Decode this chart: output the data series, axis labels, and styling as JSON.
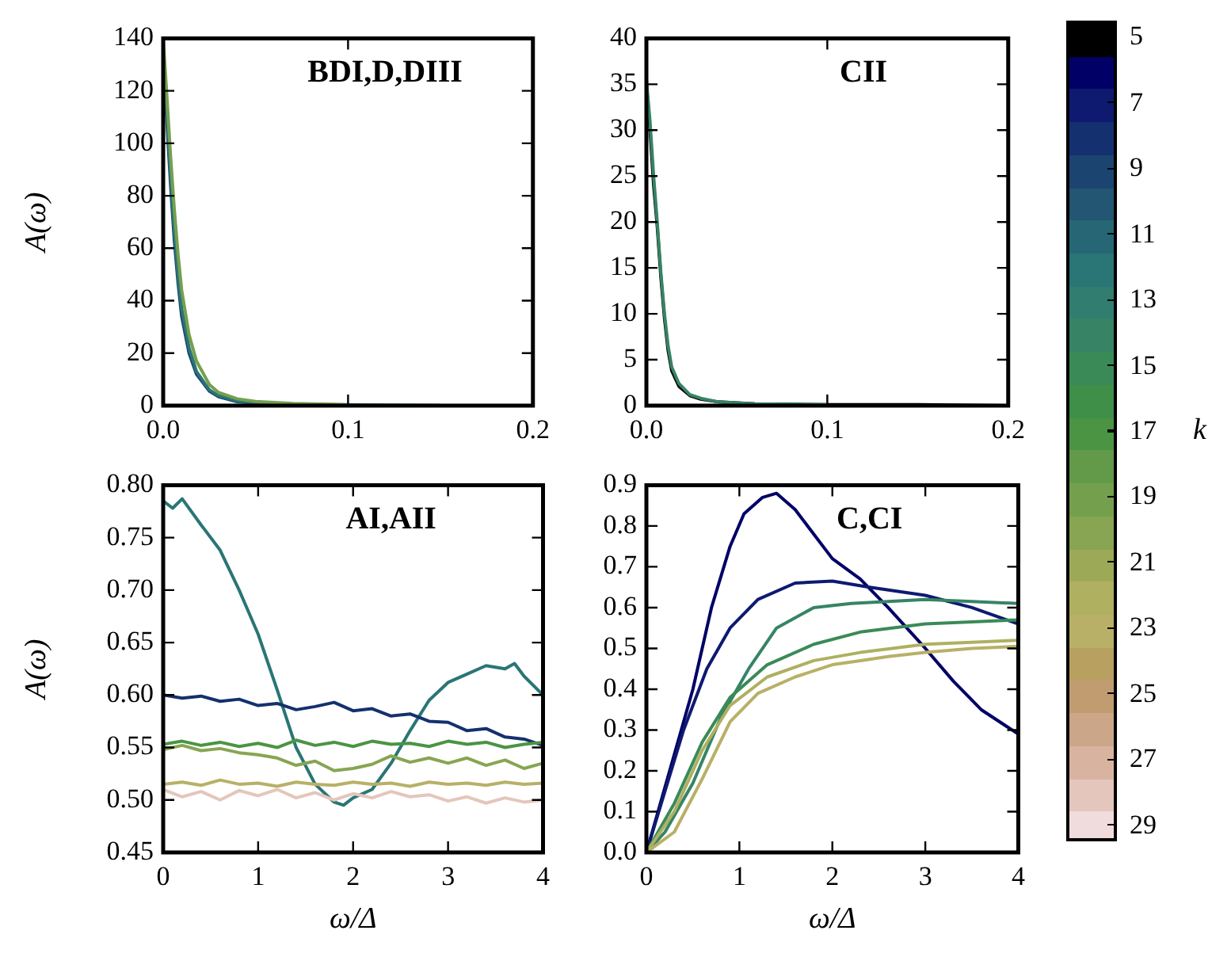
{
  "chart_data": [
    {
      "type": "line",
      "title": "BDI,D,DIII",
      "ylabel": "A(ω)",
      "xlim": [
        0,
        0.2
      ],
      "xticks": [
        {
          "value": 0,
          "label": "0.0"
        },
        0.1,
        0.2
      ],
      "ylim": [
        0,
        140
      ],
      "yticks": [
        0,
        20,
        40,
        60,
        80,
        100,
        120,
        140
      ],
      "series": [
        {
          "color": "#74a04e",
          "x": [
            0,
            0.002,
            0.004,
            0.006,
            0.008,
            0.01,
            0.014,
            0.018,
            0.025,
            0.03,
            0.04,
            0.05,
            0.07,
            0.1
          ],
          "values": [
            140,
            118,
            95,
            75,
            58,
            44,
            27,
            17,
            8,
            5,
            2.6,
            1.6,
            0.8,
            0.4
          ]
        },
        {
          "color": "#2a7576",
          "x": [
            0,
            0.002,
            0.004,
            0.006,
            0.008,
            0.01,
            0.014,
            0.018,
            0.025,
            0.03,
            0.04,
            0.05,
            0.07,
            0.1,
            0.15
          ],
          "values": [
            138,
            112,
            88,
            67,
            50,
            37,
            22,
            13,
            6,
            3.8,
            1.8,
            1,
            0.5,
            0.3,
            0.1
          ]
        },
        {
          "color": "#1c4470",
          "x": [
            0,
            0.002,
            0.004,
            0.006,
            0.008,
            0.01,
            0.014,
            0.018,
            0.025,
            0.03,
            0.04,
            0.05,
            0.07
          ],
          "values": [
            136,
            108,
            84,
            63,
            47,
            34,
            20,
            12,
            5.5,
            3.4,
            1.5,
            0.8,
            0.4
          ]
        }
      ]
    },
    {
      "type": "line",
      "title": "CII",
      "xlim": [
        0,
        0.2
      ],
      "xticks": [
        {
          "value": 0,
          "label": "0.0"
        },
        0.1,
        0.2
      ],
      "ylim": [
        0,
        40
      ],
      "yticks": [
        0,
        5,
        10,
        15,
        20,
        25,
        30,
        35,
        40
      ],
      "series": [
        {
          "color": "#368465",
          "x": [
            0,
            0.002,
            0.004,
            0.006,
            0.008,
            0.01,
            0.012,
            0.014,
            0.018,
            0.024,
            0.03,
            0.04,
            0.06,
            0.1
          ],
          "values": [
            35.5,
            31,
            25,
            20,
            14.5,
            10,
            6.5,
            4.2,
            2.4,
            1.2,
            0.8,
            0.4,
            0.2,
            0.1
          ]
        },
        {
          "color": "#000000",
          "x": [
            0,
            0.002,
            0.004,
            0.006,
            0.008,
            0.01,
            0.012,
            0.014,
            0.018,
            0.024,
            0.03,
            0.04,
            0.06,
            0.1,
            0.15,
            0.2
          ],
          "values": [
            35,
            30,
            24,
            19.5,
            14,
            9.5,
            6,
            3.8,
            2.1,
            1.1,
            0.7,
            0.4,
            0.2,
            0.1,
            0.1,
            0
          ]
        }
      ]
    },
    {
      "type": "line",
      "title": "AI,AII",
      "xlabel": "ω/Δ",
      "ylabel": "A(ω)",
      "xlim": [
        0,
        4
      ],
      "xticks": [
        0,
        1,
        2,
        3,
        4
      ],
      "ylim": [
        0.45,
        0.8
      ],
      "yticks": [
        {
          "value": 0.45,
          "label": "0.45"
        },
        {
          "value": 0.5,
          "label": "0.50"
        },
        {
          "value": 0.55,
          "label": "0.55"
        },
        {
          "value": 0.6,
          "label": "0.60"
        },
        {
          "value": 0.65,
          "label": "0.65"
        },
        {
          "value": 0.7,
          "label": "0.70"
        },
        {
          "value": 0.75,
          "label": "0.75"
        },
        {
          "value": 0.8,
          "label": "0.80"
        }
      ],
      "series": [
        {
          "color": "#e4c6bc",
          "x": [
            0,
            0.2,
            0.4,
            0.6,
            0.8,
            1,
            1.2,
            1.4,
            1.6,
            1.8,
            2,
            2.2,
            2.4,
            2.6,
            2.8,
            3,
            3.2,
            3.4,
            3.6,
            3.8,
            4
          ],
          "values": [
            0.51,
            0.503,
            0.508,
            0.5,
            0.509,
            0.504,
            0.51,
            0.502,
            0.507,
            0.5,
            0.506,
            0.502,
            0.508,
            0.503,
            0.505,
            0.499,
            0.503,
            0.497,
            0.502,
            0.498,
            0.5
          ]
        },
        {
          "color": "#b8b066",
          "x": [
            0,
            0.2,
            0.4,
            0.6,
            0.8,
            1,
            1.2,
            1.4,
            1.6,
            1.8,
            2,
            2.2,
            2.4,
            2.6,
            2.8,
            3,
            3.2,
            3.4,
            3.6,
            3.8,
            4
          ],
          "values": [
            0.515,
            0.517,
            0.514,
            0.519,
            0.515,
            0.516,
            0.513,
            0.517,
            0.515,
            0.514,
            0.517,
            0.515,
            0.516,
            0.513,
            0.517,
            0.515,
            0.516,
            0.514,
            0.517,
            0.515,
            0.516
          ]
        },
        {
          "color": "#87a552",
          "x": [
            0,
            0.2,
            0.4,
            0.6,
            0.8,
            1,
            1.2,
            1.4,
            1.6,
            1.8,
            2,
            2.2,
            2.4,
            2.6,
            2.8,
            3,
            3.2,
            3.4,
            3.6,
            3.8,
            4
          ],
          "values": [
            0.548,
            0.552,
            0.547,
            0.549,
            0.545,
            0.543,
            0.54,
            0.533,
            0.537,
            0.528,
            0.53,
            0.534,
            0.542,
            0.536,
            0.54,
            0.535,
            0.54,
            0.533,
            0.538,
            0.53,
            0.535
          ]
        },
        {
          "color": "#4a9444",
          "x": [
            0,
            0.2,
            0.4,
            0.6,
            0.8,
            1,
            1.2,
            1.4,
            1.6,
            1.8,
            2,
            2.2,
            2.4,
            2.6,
            2.8,
            3,
            3.2,
            3.4,
            3.6,
            3.8,
            4
          ],
          "values": [
            0.553,
            0.556,
            0.552,
            0.555,
            0.551,
            0.554,
            0.55,
            0.557,
            0.552,
            0.555,
            0.551,
            0.556,
            0.553,
            0.554,
            0.551,
            0.556,
            0.553,
            0.555,
            0.55,
            0.553,
            0.555
          ]
        },
        {
          "color": "#14306e",
          "x": [
            0,
            0.2,
            0.4,
            0.6,
            0.8,
            1,
            1.2,
            1.4,
            1.6,
            1.8,
            2,
            2.2,
            2.4,
            2.6,
            2.8,
            3,
            3.2,
            3.4,
            3.6,
            3.8,
            4
          ],
          "values": [
            0.6,
            0.597,
            0.599,
            0.594,
            0.596,
            0.59,
            0.592,
            0.586,
            0.589,
            0.593,
            0.585,
            0.587,
            0.58,
            0.582,
            0.575,
            0.574,
            0.566,
            0.568,
            0.56,
            0.558,
            0.552
          ]
        },
        {
          "color": "#2a7576",
          "x": [
            0,
            0.1,
            0.2,
            0.4,
            0.6,
            0.8,
            1,
            1.2,
            1.4,
            1.6,
            1.8,
            1.9,
            2,
            2.2,
            2.4,
            2.6,
            2.8,
            3,
            3.2,
            3.4,
            3.6,
            3.7,
            3.8,
            4
          ],
          "values": [
            0.785,
            0.778,
            0.787,
            0.762,
            0.738,
            0.7,
            0.658,
            0.605,
            0.55,
            0.515,
            0.498,
            0.495,
            0.502,
            0.51,
            0.535,
            0.566,
            0.595,
            0.612,
            0.62,
            0.628,
            0.625,
            0.63,
            0.618,
            0.6
          ]
        }
      ]
    },
    {
      "type": "line",
      "title": "C,CI",
      "xlabel": "ω/Δ",
      "xlim": [
        0,
        4
      ],
      "xticks": [
        0,
        1,
        2,
        3,
        4
      ],
      "ylim": [
        0,
        0.9
      ],
      "yticks": [
        {
          "value": 0,
          "label": "0.0"
        },
        0.1,
        0.2,
        0.3,
        0.4,
        0.5,
        0.6,
        0.7,
        0.8,
        0.9
      ],
      "clabel": "k",
      "clim": [
        4.5,
        29.5
      ],
      "cticks": [
        5,
        7,
        9,
        11,
        13,
        15,
        17,
        19,
        21,
        23,
        25,
        27,
        29
      ],
      "series": [
        {
          "color": "#b8b066",
          "x": [
            0,
            0.3,
            0.6,
            0.9,
            1.2,
            1.6,
            2,
            2.3,
            2.6,
            3,
            3.5,
            4
          ],
          "values": [
            0,
            0.05,
            0.18,
            0.32,
            0.39,
            0.43,
            0.46,
            0.47,
            0.48,
            0.49,
            0.5,
            0.505
          ]
        },
        {
          "color": "#afb060",
          "x": [
            0,
            0.3,
            0.6,
            0.9,
            1.3,
            1.8,
            2.3,
            3,
            3.5,
            4
          ],
          "values": [
            0,
            0.1,
            0.25,
            0.36,
            0.43,
            0.47,
            0.49,
            0.51,
            0.515,
            0.52
          ]
        },
        {
          "color": "#3a8a58",
          "x": [
            0,
            0.3,
            0.6,
            0.9,
            1.3,
            1.8,
            2.3,
            3,
            3.5,
            4
          ],
          "values": [
            0,
            0.12,
            0.27,
            0.38,
            0.46,
            0.51,
            0.54,
            0.56,
            0.565,
            0.57
          ]
        },
        {
          "color": "#368465",
          "x": [
            0,
            0.2,
            0.5,
            0.8,
            1.1,
            1.4,
            1.8,
            2.2,
            2.6,
            3,
            3.5,
            4
          ],
          "values": [
            0,
            0.05,
            0.17,
            0.33,
            0.45,
            0.55,
            0.6,
            0.61,
            0.615,
            0.62,
            0.615,
            0.61
          ]
        },
        {
          "color": "#0e1a70",
          "x": [
            0,
            0.2,
            0.4,
            0.65,
            0.9,
            1.2,
            1.6,
            2,
            2.4,
            3,
            3.5,
            4
          ],
          "values": [
            0,
            0.15,
            0.3,
            0.45,
            0.55,
            0.62,
            0.66,
            0.665,
            0.65,
            0.63,
            0.6,
            0.56
          ]
        },
        {
          "color": "#000066",
          "x": [
            0,
            0.25,
            0.5,
            0.7,
            0.9,
            1.05,
            1.25,
            1.4,
            1.6,
            1.8,
            2,
            2.3,
            2.6,
            3,
            3.3,
            3.6,
            4
          ],
          "values": [
            0,
            0.2,
            0.4,
            0.6,
            0.75,
            0.83,
            0.87,
            0.88,
            0.84,
            0.78,
            0.72,
            0.67,
            0.6,
            0.5,
            0.42,
            0.35,
            0.29
          ]
        }
      ]
    }
  ]
}
